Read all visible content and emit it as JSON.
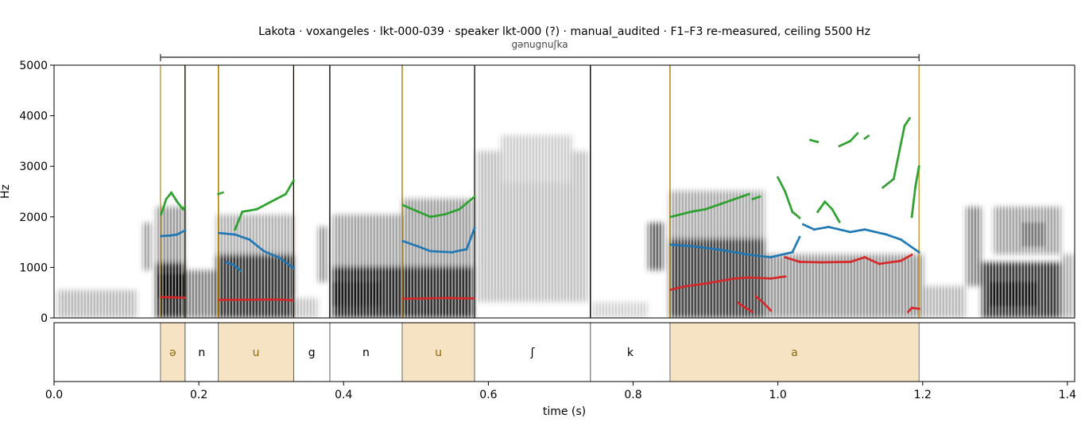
{
  "chart_data": {
    "type": "scatter",
    "title": "Lakota · voxangeles · lkt-000-039 · speaker lkt-000 (?) · manual_audited · F1–F3 re-measured, ceiling 5500 Hz",
    "xlabel": "time (s)",
    "ylabel": "Hz",
    "xlim": [
      0.0,
      1.41
    ],
    "ylim": [
      0,
      5000
    ],
    "x_ticks": [
      "0.0",
      "0.2",
      "0.4",
      "0.6",
      "0.8",
      "1.0",
      "1.2",
      "1.4"
    ],
    "y_ticks": [
      "0",
      "1000",
      "2000",
      "3000",
      "4000",
      "5000"
    ],
    "word": {
      "label": "gənugnuʃka",
      "start": 0.147,
      "end": 1.195
    },
    "segments": [
      {
        "label": "ə",
        "start": 0.147,
        "end": 0.181,
        "vowel": true
      },
      {
        "label": "n",
        "start": 0.181,
        "end": 0.227,
        "vowel": false
      },
      {
        "label": "u",
        "start": 0.227,
        "end": 0.331,
        "vowel": true
      },
      {
        "label": "g",
        "start": 0.331,
        "end": 0.381,
        "vowel": false
      },
      {
        "label": "n",
        "start": 0.381,
        "end": 0.481,
        "vowel": false
      },
      {
        "label": "u",
        "start": 0.481,
        "end": 0.581,
        "vowel": true
      },
      {
        "label": "ʃ",
        "start": 0.581,
        "end": 0.741,
        "vowel": false
      },
      {
        "label": "k",
        "start": 0.741,
        "end": 0.851,
        "vowel": false
      },
      {
        "label": "a",
        "start": 0.851,
        "end": 1.195,
        "vowel": true
      }
    ],
    "series": [
      {
        "name": "F1",
        "color": "#d62728",
        "tracks": [
          [
            [
              0.148,
              410
            ],
            [
              0.158,
              410
            ],
            [
              0.168,
              405
            ],
            [
              0.18,
              400
            ]
          ],
          [
            [
              0.228,
              360
            ],
            [
              0.26,
              360
            ],
            [
              0.3,
              365
            ],
            [
              0.32,
              360
            ],
            [
              0.33,
              345
            ]
          ],
          [
            [
              0.482,
              380
            ],
            [
              0.51,
              385
            ],
            [
              0.54,
              395
            ],
            [
              0.56,
              390
            ],
            [
              0.58,
              385
            ]
          ],
          [
            [
              0.852,
              560
            ],
            [
              0.87,
              620
            ],
            [
              0.9,
              680
            ],
            [
              0.94,
              780
            ],
            [
              0.96,
              800
            ],
            [
              0.99,
              780
            ],
            [
              1.01,
              820
            ]
          ],
          [
            [
              0.945,
              300
            ],
            [
              0.955,
              200
            ],
            [
              0.965,
              120
            ]
          ],
          [
            [
              0.97,
              420
            ],
            [
              0.98,
              300
            ],
            [
              0.99,
              150
            ]
          ],
          [
            [
              1.01,
              1200
            ],
            [
              1.03,
              1110
            ],
            [
              1.06,
              1100
            ],
            [
              1.1,
              1110
            ],
            [
              1.12,
              1200
            ],
            [
              1.14,
              1070
            ],
            [
              1.17,
              1130
            ],
            [
              1.185,
              1250
            ]
          ],
          [
            [
              1.18,
              120
            ],
            [
              1.185,
              200
            ],
            [
              1.195,
              180
            ]
          ]
        ]
      },
      {
        "name": "F2",
        "color": "#1f77b4",
        "tracks": [
          [
            [
              0.148,
              1620
            ],
            [
              0.16,
              1630
            ],
            [
              0.17,
              1650
            ],
            [
              0.181,
              1730
            ]
          ],
          [
            [
              0.228,
              1680
            ],
            [
              0.25,
              1650
            ],
            [
              0.27,
              1550
            ],
            [
              0.29,
              1320
            ],
            [
              0.31,
              1200
            ],
            [
              0.331,
              990
            ]
          ],
          [
            [
              0.238,
              1100
            ],
            [
              0.248,
              1050
            ],
            [
              0.258,
              930
            ]
          ],
          [
            [
              0.482,
              1520
            ],
            [
              0.5,
              1430
            ],
            [
              0.52,
              1320
            ],
            [
              0.55,
              1300
            ],
            [
              0.57,
              1360
            ],
            [
              0.581,
              1780
            ]
          ],
          [
            [
              0.852,
              1450
            ],
            [
              0.88,
              1420
            ],
            [
              0.92,
              1350
            ],
            [
              0.96,
              1250
            ],
            [
              0.99,
              1200
            ],
            [
              1.02,
              1300
            ],
            [
              1.03,
              1600
            ]
          ],
          [
            [
              1.035,
              1850
            ],
            [
              1.05,
              1750
            ],
            [
              1.07,
              1800
            ],
            [
              1.1,
              1700
            ],
            [
              1.12,
              1750
            ],
            [
              1.15,
              1650
            ],
            [
              1.17,
              1550
            ],
            [
              1.195,
              1300
            ]
          ]
        ]
      },
      {
        "name": "F3",
        "color": "#2ca02c",
        "tracks": [
          [
            [
              0.148,
              2050
            ],
            [
              0.155,
              2350
            ],
            [
              0.162,
              2480
            ],
            [
              0.17,
              2300
            ],
            [
              0.178,
              2150
            ],
            [
              0.181,
              2200
            ]
          ],
          [
            [
              0.227,
              2450
            ],
            [
              0.233,
              2480
            ]
          ],
          [
            [
              0.25,
              1750
            ],
            [
              0.26,
              2100
            ],
            [
              0.28,
              2150
            ],
            [
              0.3,
              2300
            ],
            [
              0.32,
              2450
            ],
            [
              0.331,
              2720
            ]
          ],
          [
            [
              0.482,
              2230
            ],
            [
              0.5,
              2120
            ],
            [
              0.52,
              2000
            ],
            [
              0.54,
              2050
            ],
            [
              0.56,
              2150
            ],
            [
              0.581,
              2400
            ]
          ],
          [
            [
              0.852,
              2000
            ],
            [
              0.88,
              2100
            ],
            [
              0.9,
              2150
            ],
            [
              0.92,
              2250
            ],
            [
              0.95,
              2400
            ],
            [
              0.96,
              2450
            ]
          ],
          [
            [
              0.965,
              2350
            ],
            [
              0.975,
              2400
            ]
          ],
          [
            [
              1.0,
              2780
            ],
            [
              1.01,
              2500
            ],
            [
              1.02,
              2100
            ],
            [
              1.03,
              1980
            ]
          ],
          [
            [
              1.045,
              3520
            ],
            [
              1.055,
              3480
            ]
          ],
          [
            [
              1.055,
              2100
            ],
            [
              1.065,
              2300
            ],
            [
              1.075,
              2150
            ],
            [
              1.085,
              1900
            ]
          ],
          [
            [
              1.085,
              3400
            ],
            [
              1.1,
              3500
            ],
            [
              1.11,
              3650
            ]
          ],
          [
            [
              1.12,
              3550
            ],
            [
              1.125,
              3600
            ]
          ],
          [
            [
              1.145,
              2580
            ],
            [
              1.16,
              2750
            ],
            [
              1.175,
              3800
            ],
            [
              1.182,
              3950
            ]
          ],
          [
            [
              1.185,
              2000
            ],
            [
              1.19,
              2600
            ],
            [
              1.195,
              3000
            ]
          ]
        ]
      }
    ]
  }
}
